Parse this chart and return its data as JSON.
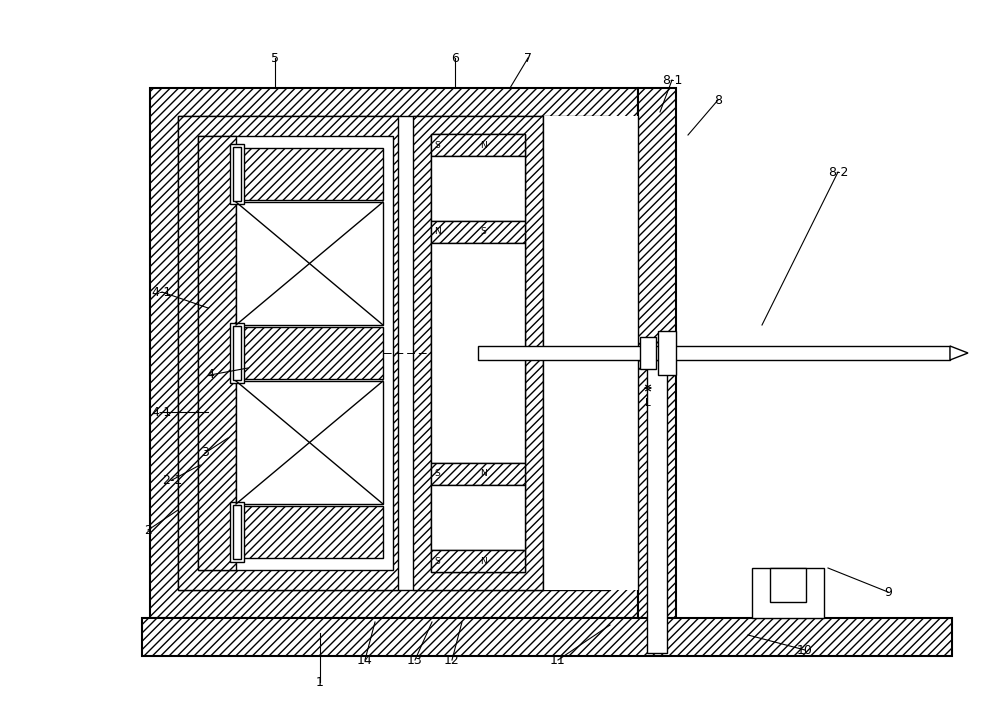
{
  "bg_color": "#ffffff",
  "lw": 1.0,
  "lw_thick": 1.5,
  "hatch": "////",
  "labels_data": [
    [
      "1",
      320,
      682,
      320,
      633
    ],
    [
      "2",
      148,
      530,
      178,
      510
    ],
    [
      "2-1",
      172,
      480,
      200,
      465
    ],
    [
      "3",
      205,
      453,
      228,
      438
    ],
    [
      "4",
      210,
      375,
      248,
      368
    ],
    [
      "4-1",
      162,
      292,
      208,
      308
    ],
    [
      "4-1",
      162,
      412,
      208,
      412
    ],
    [
      "5",
      275,
      58,
      275,
      88
    ],
    [
      "6",
      455,
      58,
      455,
      88
    ],
    [
      "7",
      528,
      58,
      510,
      88
    ],
    [
      "8",
      718,
      100,
      688,
      135
    ],
    [
      "8-1",
      672,
      80,
      660,
      112
    ],
    [
      "8-2",
      838,
      172,
      762,
      325
    ],
    [
      "9",
      888,
      592,
      828,
      568
    ],
    [
      "10",
      805,
      650,
      748,
      635
    ],
    [
      "11",
      558,
      660,
      610,
      625
    ],
    [
      "12",
      452,
      660,
      462,
      622
    ],
    [
      "13",
      415,
      660,
      432,
      622
    ],
    [
      "14",
      365,
      660,
      375,
      622
    ]
  ]
}
